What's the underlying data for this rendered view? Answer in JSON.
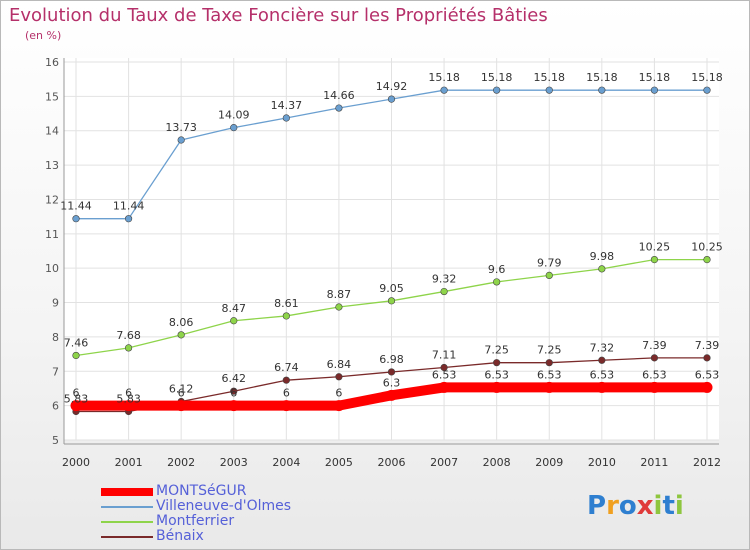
{
  "chart_data": {
    "type": "line",
    "title": "Evolution du Taux de Taxe Foncière sur les Propriétés Bâties",
    "subtitle": "(en %)",
    "x": [
      "2000",
      "2001",
      "2002",
      "2003",
      "2004",
      "2005",
      "2006",
      "2007",
      "2008",
      "2009",
      "2010",
      "2011",
      "2012"
    ],
    "ylim": [
      5,
      16
    ],
    "yticks": [
      "5",
      "6",
      "7",
      "8",
      "9",
      "10",
      "11",
      "12",
      "13",
      "14",
      "15",
      "16"
    ],
    "grid": true,
    "legend_position": "bottom-left",
    "series": [
      {
        "name": "MONTSéGUR",
        "color": "#ff0000",
        "values": [
          6,
          6,
          6,
          6,
          6,
          6,
          6.3,
          6.53,
          6.53,
          6.53,
          6.53,
          6.53,
          6.53
        ],
        "labels": [
          "6",
          "6",
          "6",
          "6",
          "6",
          "6",
          "6.3",
          "6.53",
          "6.53",
          "6.53",
          "6.53",
          "6.53",
          "6.53"
        ]
      },
      {
        "name": "Villeneuve-d'Olmes",
        "color": "#6a9fd0",
        "values": [
          11.44,
          11.44,
          13.73,
          14.09,
          14.37,
          14.66,
          14.92,
          15.18,
          15.18,
          15.18,
          15.18,
          15.18,
          15.18
        ],
        "labels": [
          "11.44",
          "11.44",
          "13.73",
          "14.09",
          "14.37",
          "14.66",
          "14.92",
          "15.18",
          "15.18",
          "15.18",
          "15.18",
          "15.18",
          "15.18"
        ]
      },
      {
        "name": "Montferrier",
        "color": "#8ed44a",
        "values": [
          7.46,
          7.68,
          8.06,
          8.47,
          8.61,
          8.87,
          9.05,
          9.32,
          9.6,
          9.79,
          9.98,
          10.25,
          10.25
        ],
        "labels": [
          "7.46",
          "7.68",
          "8.06",
          "8.47",
          "8.61",
          "8.87",
          "9.05",
          "9.32",
          "9.6",
          "9.79",
          "9.98",
          "10.25",
          "10.25"
        ]
      },
      {
        "name": "Bénaix",
        "color": "#7a2a2a",
        "values": [
          5.83,
          5.83,
          6.12,
          6.42,
          6.74,
          6.84,
          6.98,
          7.11,
          7.25,
          7.25,
          7.32,
          7.39,
          7.39
        ],
        "labels": [
          "5.83",
          "5.83",
          "6.12",
          "6.42",
          "6.74",
          "6.84",
          "6.98",
          "7.11",
          "7.25",
          "7.25",
          "7.32",
          "7.39",
          "7.39"
        ]
      }
    ]
  },
  "logo": {
    "letters": [
      "P",
      "r",
      "o",
      "x",
      "i",
      "t",
      "i"
    ],
    "colors": [
      "#2e7fd0",
      "#f0a020",
      "#2e7fd0",
      "#e03a3a",
      "#8ec63f",
      "#2e7fd0",
      "#8ec63f"
    ]
  }
}
